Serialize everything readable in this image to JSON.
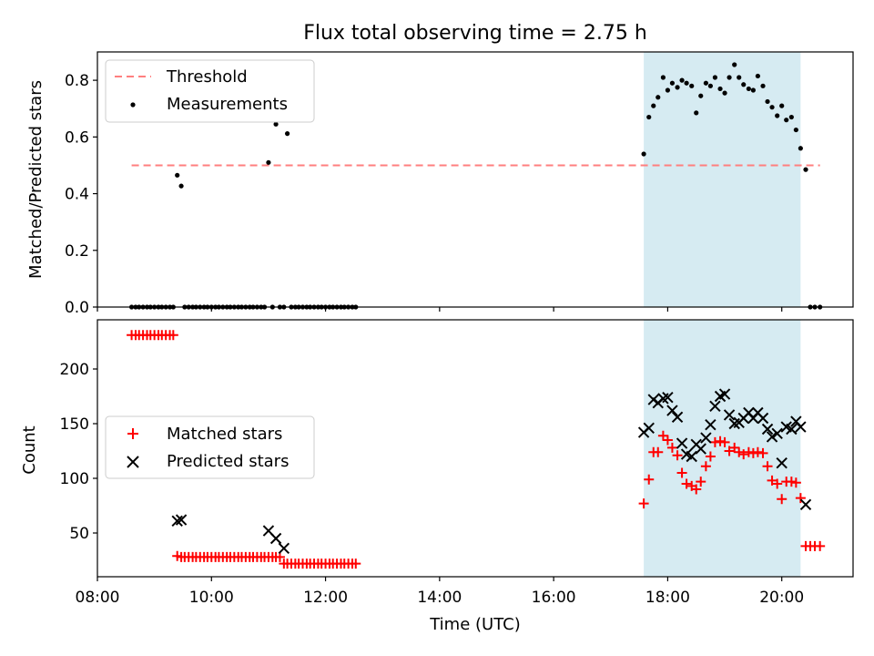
{
  "title": "Flux total observing time = 2.75 h",
  "colors": {
    "threshold": "#ff7f7f",
    "measurement": "#000000",
    "matched": "#ff0000",
    "predicted": "#000000",
    "highlight": "#add8e6"
  },
  "chart_data": [
    {
      "type": "scatter",
      "panel": "top",
      "ylabel": "Matched/Predicted stars",
      "xlim": [
        8.0,
        21.25
      ],
      "ylim": [
        0.0,
        0.9
      ],
      "yticks": [
        0.0,
        0.2,
        0.4,
        0.6,
        0.8
      ],
      "ytick_labels": [
        "0.0",
        "0.2",
        "0.4",
        "0.6",
        "0.8"
      ],
      "legend": {
        "position": "upper left",
        "entries": [
          "Threshold",
          "Measurements"
        ]
      },
      "highlight_span": [
        17.58,
        20.33
      ],
      "threshold": {
        "name": "Threshold",
        "y": 0.5,
        "x_range": [
          8.6,
          20.67
        ],
        "style": "dashed"
      },
      "measurements": {
        "name": "Measurements",
        "x": [
          8.6,
          8.67,
          8.73,
          8.8,
          8.87,
          8.93,
          9.0,
          9.07,
          9.13,
          9.2,
          9.27,
          9.33,
          9.4,
          9.47,
          9.53,
          9.6,
          9.67,
          9.73,
          9.8,
          9.87,
          9.93,
          10.0,
          10.07,
          10.13,
          10.2,
          10.27,
          10.33,
          10.4,
          10.47,
          10.53,
          10.6,
          10.67,
          10.73,
          10.8,
          10.87,
          10.93,
          11.0,
          11.07,
          11.13,
          11.2,
          11.27,
          11.33,
          11.4,
          11.47,
          11.53,
          11.6,
          11.67,
          11.73,
          11.8,
          11.87,
          11.93,
          12.0,
          12.07,
          12.13,
          12.2,
          12.27,
          12.33,
          12.4,
          12.47,
          12.53,
          17.58,
          17.67,
          17.75,
          17.83,
          17.92,
          18.0,
          18.08,
          18.17,
          18.25,
          18.33,
          18.42,
          18.5,
          18.58,
          18.67,
          18.75,
          18.83,
          18.92,
          19.0,
          19.08,
          19.17,
          19.25,
          19.33,
          19.42,
          19.5,
          19.58,
          19.67,
          19.75,
          19.83,
          19.92,
          20.0,
          20.08,
          20.17,
          20.25,
          20.33,
          20.42,
          20.5,
          20.58,
          20.67
        ],
        "y": [
          0.0,
          0.0,
          0.0,
          0.0,
          0.0,
          0.0,
          0.0,
          0.0,
          0.0,
          0.0,
          0.0,
          0.0,
          0.465,
          0.427,
          0.0,
          0.0,
          0.0,
          0.0,
          0.0,
          0.0,
          0.0,
          0.0,
          0.0,
          0.0,
          0.0,
          0.0,
          0.0,
          0.0,
          0.0,
          0.0,
          0.0,
          0.0,
          0.0,
          0.0,
          0.0,
          0.0,
          0.51,
          0.0,
          0.645,
          0.0,
          0.0,
          0.612,
          0.0,
          0.0,
          0.0,
          0.0,
          0.0,
          0.0,
          0.0,
          0.0,
          0.0,
          0.0,
          0.0,
          0.0,
          0.0,
          0.0,
          0.0,
          0.0,
          0.0,
          0.0,
          0.54,
          0.67,
          0.71,
          0.74,
          0.81,
          0.765,
          0.79,
          0.775,
          0.8,
          0.79,
          0.78,
          0.685,
          0.745,
          0.79,
          0.78,
          0.81,
          0.77,
          0.755,
          0.81,
          0.855,
          0.81,
          0.785,
          0.77,
          0.765,
          0.815,
          0.78,
          0.725,
          0.705,
          0.675,
          0.71,
          0.66,
          0.67,
          0.625,
          0.56,
          0.485,
          0.0,
          0.0,
          0.0
        ]
      }
    },
    {
      "type": "scatter",
      "panel": "bottom",
      "xlabel": "Time (UTC)",
      "ylabel": "Count",
      "xlim": [
        8.0,
        21.25
      ],
      "ylim": [
        10,
        245
      ],
      "xticks": [
        8,
        10,
        12,
        14,
        16,
        18,
        20
      ],
      "xtick_labels": [
        "08:00",
        "10:00",
        "12:00",
        "14:00",
        "16:00",
        "18:00",
        "20:00"
      ],
      "yticks": [
        50,
        100,
        150,
        200
      ],
      "ytick_labels": [
        "50",
        "100",
        "150",
        "200"
      ],
      "legend": {
        "position": "center left",
        "entries": [
          "Matched stars",
          "Predicted stars"
        ]
      },
      "highlight_span": [
        17.58,
        20.33
      ],
      "series": [
        {
          "name": "Matched stars",
          "marker": "plus",
          "x": [
            8.6,
            8.67,
            8.73,
            8.8,
            8.87,
            8.93,
            9.0,
            9.07,
            9.13,
            9.2,
            9.27,
            9.33,
            9.4,
            9.47,
            9.53,
            9.6,
            9.67,
            9.73,
            9.8,
            9.87,
            9.93,
            10.0,
            10.07,
            10.13,
            10.2,
            10.27,
            10.33,
            10.4,
            10.47,
            10.53,
            10.6,
            10.67,
            10.73,
            10.8,
            10.87,
            10.93,
            11.0,
            11.07,
            11.13,
            11.2,
            11.27,
            11.33,
            11.4,
            11.47,
            11.53,
            11.6,
            11.67,
            11.73,
            11.8,
            11.87,
            11.93,
            12.0,
            12.07,
            12.13,
            12.2,
            12.27,
            12.33,
            12.4,
            12.47,
            12.53,
            17.58,
            17.67,
            17.75,
            17.83,
            17.92,
            18.0,
            18.08,
            18.17,
            18.25,
            18.33,
            18.42,
            18.5,
            18.58,
            18.67,
            18.75,
            18.83,
            18.92,
            19.0,
            19.08,
            19.17,
            19.25,
            19.33,
            19.42,
            19.5,
            19.58,
            19.67,
            19.75,
            19.83,
            19.92,
            20.0,
            20.08,
            20.17,
            20.25,
            20.33,
            20.42,
            20.5,
            20.58,
            20.67
          ],
          "y": [
            231,
            231,
            231,
            231,
            231,
            231,
            231,
            231,
            231,
            231,
            231,
            231,
            29,
            28,
            28,
            28,
            28,
            28,
            28,
            28,
            28,
            28,
            28,
            28,
            28,
            28,
            28,
            28,
            28,
            28,
            28,
            28,
            28,
            28,
            28,
            28,
            28,
            28,
            28,
            28,
            22,
            22,
            22,
            22,
            22,
            22,
            22,
            22,
            22,
            22,
            22,
            22,
            22,
            22,
            22,
            22,
            22,
            22,
            22,
            22,
            77,
            99,
            124,
            124,
            139,
            135,
            128,
            121,
            105,
            95,
            93,
            90,
            97,
            111,
            120,
            133,
            134,
            133,
            125,
            128,
            124,
            122,
            124,
            123,
            124,
            123,
            111,
            98,
            95,
            81,
            97,
            97,
            96,
            82,
            38,
            38,
            38,
            38
          ]
        },
        {
          "name": "Predicted stars",
          "marker": "x",
          "x": [
            9.4,
            9.47,
            11.0,
            11.13,
            11.27,
            17.58,
            17.67,
            17.75,
            17.83,
            17.92,
            18.0,
            18.08,
            18.17,
            18.25,
            18.33,
            18.42,
            18.5,
            18.58,
            18.67,
            18.75,
            18.83,
            18.92,
            19.0,
            19.08,
            19.17,
            19.25,
            19.33,
            19.42,
            19.5,
            19.58,
            19.67,
            19.75,
            19.83,
            19.92,
            20.0,
            20.08,
            20.17,
            20.25,
            20.33,
            20.42
          ],
          "y": [
            61,
            62,
            52,
            45,
            36,
            142,
            146,
            172,
            169,
            173,
            174,
            162,
            156,
            132,
            122,
            120,
            131,
            127,
            137,
            149,
            166,
            175,
            177,
            158,
            150,
            151,
            155,
            160,
            155,
            160,
            155,
            145,
            138,
            141,
            114,
            147,
            145,
            152,
            147,
            76
          ]
        }
      ]
    }
  ]
}
